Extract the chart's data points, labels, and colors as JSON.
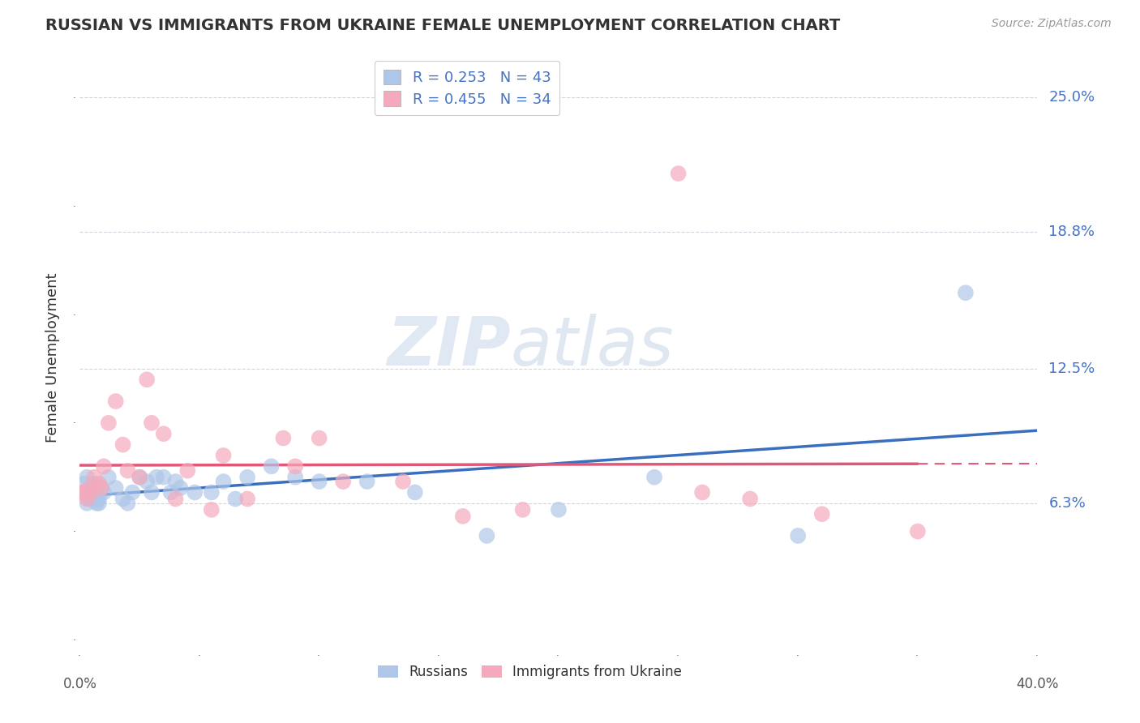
{
  "title": "RUSSIAN VS IMMIGRANTS FROM UKRAINE FEMALE UNEMPLOYMENT CORRELATION CHART",
  "source": "Source: ZipAtlas.com",
  "ylabel": "Female Unemployment",
  "xlim": [
    0.0,
    0.4
  ],
  "ylim": [
    -0.005,
    0.265
  ],
  "ytick_vals": [
    0.063,
    0.125,
    0.188,
    0.25
  ],
  "ytick_labels": [
    "6.3%",
    "12.5%",
    "18.8%",
    "25.0%"
  ],
  "xtick_vals": [
    0.0,
    0.4
  ],
  "xtick_labels": [
    "0.0%",
    "40.0%"
  ],
  "background_color": "#ffffff",
  "russians_color": "#aec6e8",
  "ukraine_color": "#f4aabc",
  "trend_russian_color": "#3a6fbf",
  "trend_ukraine_color": "#e05878",
  "legend_label1": "R = 0.253   N = 43",
  "legend_label2": "R = 0.455   N = 34",
  "grid_color": "#d0d5dd",
  "russians_x": [
    0.001,
    0.002,
    0.003,
    0.003,
    0.004,
    0.005,
    0.005,
    0.006,
    0.006,
    0.007,
    0.007,
    0.008,
    0.008,
    0.009,
    0.01,
    0.012,
    0.015,
    0.018,
    0.02,
    0.022,
    0.025,
    0.028,
    0.03,
    0.032,
    0.035,
    0.038,
    0.04,
    0.042,
    0.048,
    0.055,
    0.06,
    0.065,
    0.07,
    0.08,
    0.09,
    0.1,
    0.12,
    0.14,
    0.17,
    0.2,
    0.24,
    0.3,
    0.37
  ],
  "russians_y": [
    0.068,
    0.072,
    0.063,
    0.075,
    0.065,
    0.068,
    0.07,
    0.068,
    0.072,
    0.063,
    0.065,
    0.065,
    0.063,
    0.07,
    0.068,
    0.075,
    0.07,
    0.065,
    0.063,
    0.068,
    0.075,
    0.073,
    0.068,
    0.075,
    0.075,
    0.068,
    0.073,
    0.07,
    0.068,
    0.068,
    0.073,
    0.065,
    0.075,
    0.08,
    0.075,
    0.073,
    0.073,
    0.068,
    0.048,
    0.06,
    0.075,
    0.048,
    0.16
  ],
  "ukraine_x": [
    0.001,
    0.002,
    0.003,
    0.004,
    0.005,
    0.006,
    0.008,
    0.009,
    0.01,
    0.012,
    0.015,
    0.018,
    0.02,
    0.025,
    0.028,
    0.03,
    0.035,
    0.04,
    0.045,
    0.055,
    0.06,
    0.07,
    0.085,
    0.09,
    0.1,
    0.11,
    0.135,
    0.16,
    0.185,
    0.25,
    0.26,
    0.28,
    0.31,
    0.35
  ],
  "ukraine_y": [
    0.068,
    0.068,
    0.065,
    0.07,
    0.068,
    0.075,
    0.072,
    0.07,
    0.08,
    0.1,
    0.11,
    0.09,
    0.078,
    0.075,
    0.12,
    0.1,
    0.095,
    0.065,
    0.078,
    0.06,
    0.085,
    0.065,
    0.093,
    0.08,
    0.093,
    0.073,
    0.073,
    0.057,
    0.06,
    0.215,
    0.068,
    0.065,
    0.058,
    0.05
  ]
}
